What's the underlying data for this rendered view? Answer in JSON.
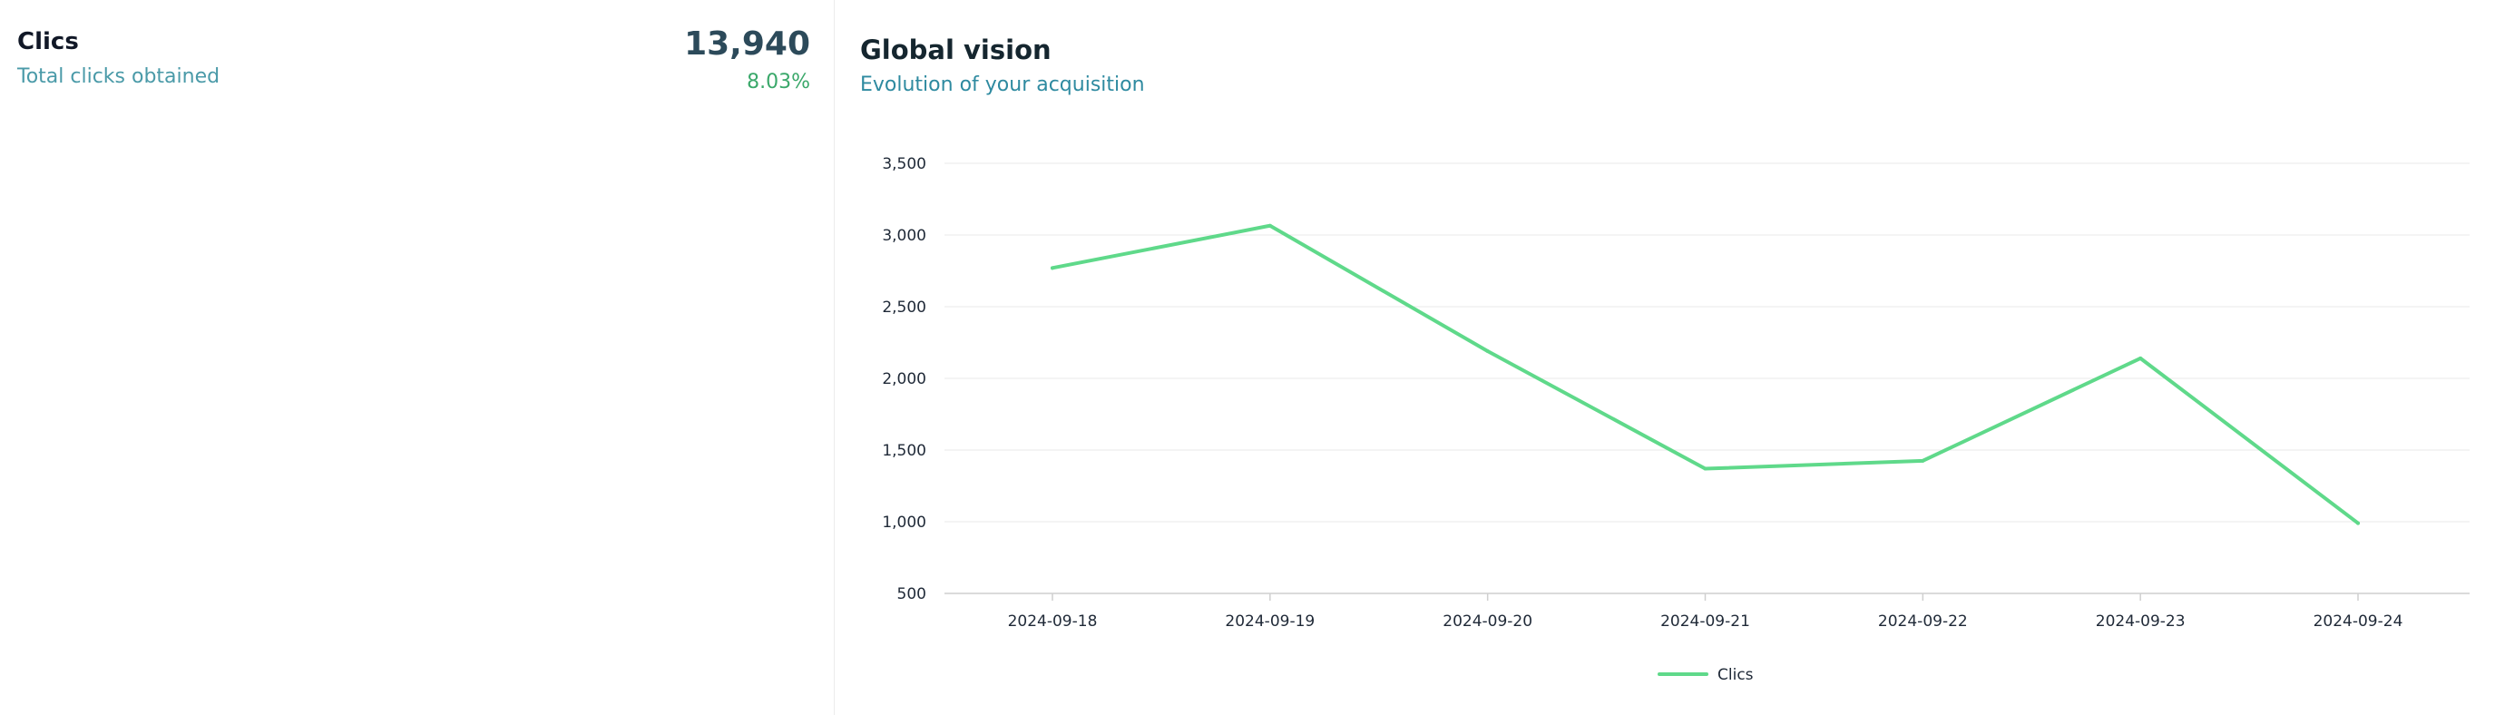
{
  "kpi": {
    "title": "Clics",
    "subtitle": "Total clicks obtained",
    "value": "13,940",
    "change": "8.03%"
  },
  "chart_data": {
    "type": "line",
    "title": "Global vision",
    "subtitle": "Evolution of your acquisition",
    "xlabel": "",
    "ylabel": "",
    "categories": [
      "2024-09-18",
      "2024-09-19",
      "2024-09-20",
      "2024-09-21",
      "2024-09-22",
      "2024-09-23",
      "2024-09-24"
    ],
    "series": [
      {
        "name": "Clics",
        "values": [
          2770,
          3065,
          2190,
          1370,
          1425,
          2140,
          990
        ],
        "color": "#5fd98a"
      }
    ],
    "ylim": [
      500,
      3500
    ],
    "yticks": [
      "500",
      "1,000",
      "1,500",
      "2,000",
      "2,500",
      "3,000",
      "3,500"
    ],
    "grid": true,
    "legend_position": "bottom-center"
  }
}
